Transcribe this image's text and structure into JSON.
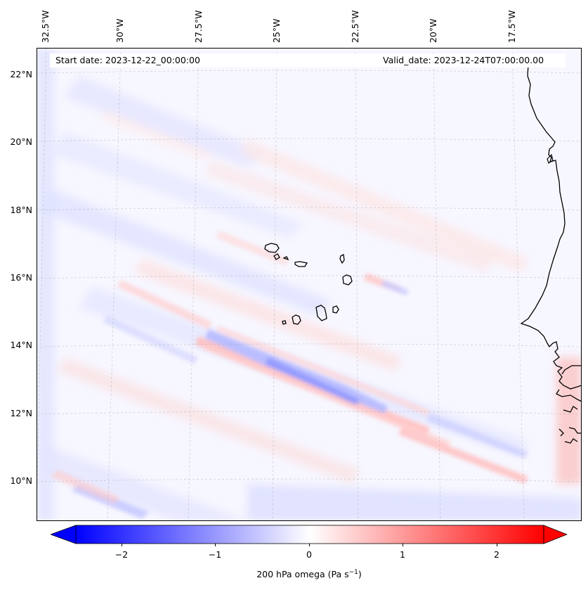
{
  "map": {
    "start_date_label": "Start date: 2023-12-22_00:00:00",
    "valid_date_label": "Valid_date: 2023-12-24T07:00:00.00",
    "lon_labels": [
      "32.5°W",
      "30°W",
      "27.5°W",
      "25°W",
      "22.5°W",
      "20°W",
      "17.5°W"
    ],
    "lat_labels": [
      "22°N",
      "20°N",
      "18°N",
      "16°N",
      "14°N",
      "12°N",
      "10°N"
    ],
    "variable": "200 hPa omega"
  },
  "colorbar": {
    "ticks": [
      "−2",
      "−1",
      "0",
      "1",
      "2"
    ],
    "title_main": "200 hPa omega (Pa s",
    "title_sup": "−1",
    "title_close": ")",
    "min": -2.5,
    "max": 2.5,
    "neg_color": "#0000ff",
    "pos_color": "#ff0000"
  }
}
